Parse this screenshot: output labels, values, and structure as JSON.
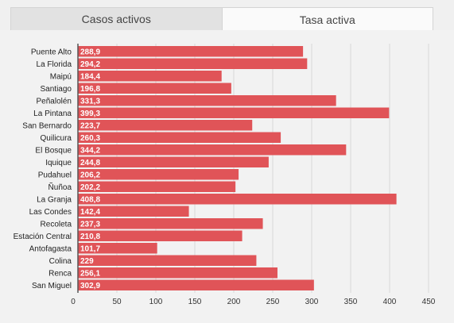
{
  "tabs": [
    {
      "label": "Casos activos",
      "active": false
    },
    {
      "label": "Tasa activa",
      "active": true
    }
  ],
  "colors": {
    "bar": "#e05458",
    "grid": "#d8d8d8",
    "axis": "#555555"
  },
  "chart_data": {
    "type": "bar",
    "orientation": "horizontal",
    "title": "",
    "xlabel": "",
    "ylabel": "",
    "xlim": [
      0,
      450
    ],
    "xticks": [
      0,
      50,
      100,
      150,
      200,
      250,
      300,
      350,
      400,
      450
    ],
    "grid": true,
    "categories": [
      "Puente Alto",
      "La Florida",
      "Maipú",
      "Santiago",
      "Peñalolén",
      "La Pintana",
      "San Bernardo",
      "Quilicura",
      "El Bosque",
      "Iquique",
      "Pudahuel",
      "Ñuñoa",
      "La Granja",
      "Las Condes",
      "Recoleta",
      "Estación Central",
      "Antofagasta",
      "Colina",
      "Renca",
      "San Miguel"
    ],
    "values": [
      288.9,
      294.2,
      184.4,
      196.8,
      331.3,
      399.3,
      223.7,
      260.3,
      344.2,
      244.8,
      206.2,
      202.2,
      408.8,
      142.4,
      237.3,
      210.8,
      101.7,
      229,
      256.1,
      302.9
    ],
    "value_labels": [
      "288,9",
      "294,2",
      "184,4",
      "196,8",
      "331,3",
      "399,3",
      "223,7",
      "260,3",
      "344,2",
      "244,8",
      "206,2",
      "202,2",
      "408,8",
      "142,4",
      "237,3",
      "210,8",
      "101,7",
      "229",
      "256,1",
      "302,9"
    ]
  }
}
